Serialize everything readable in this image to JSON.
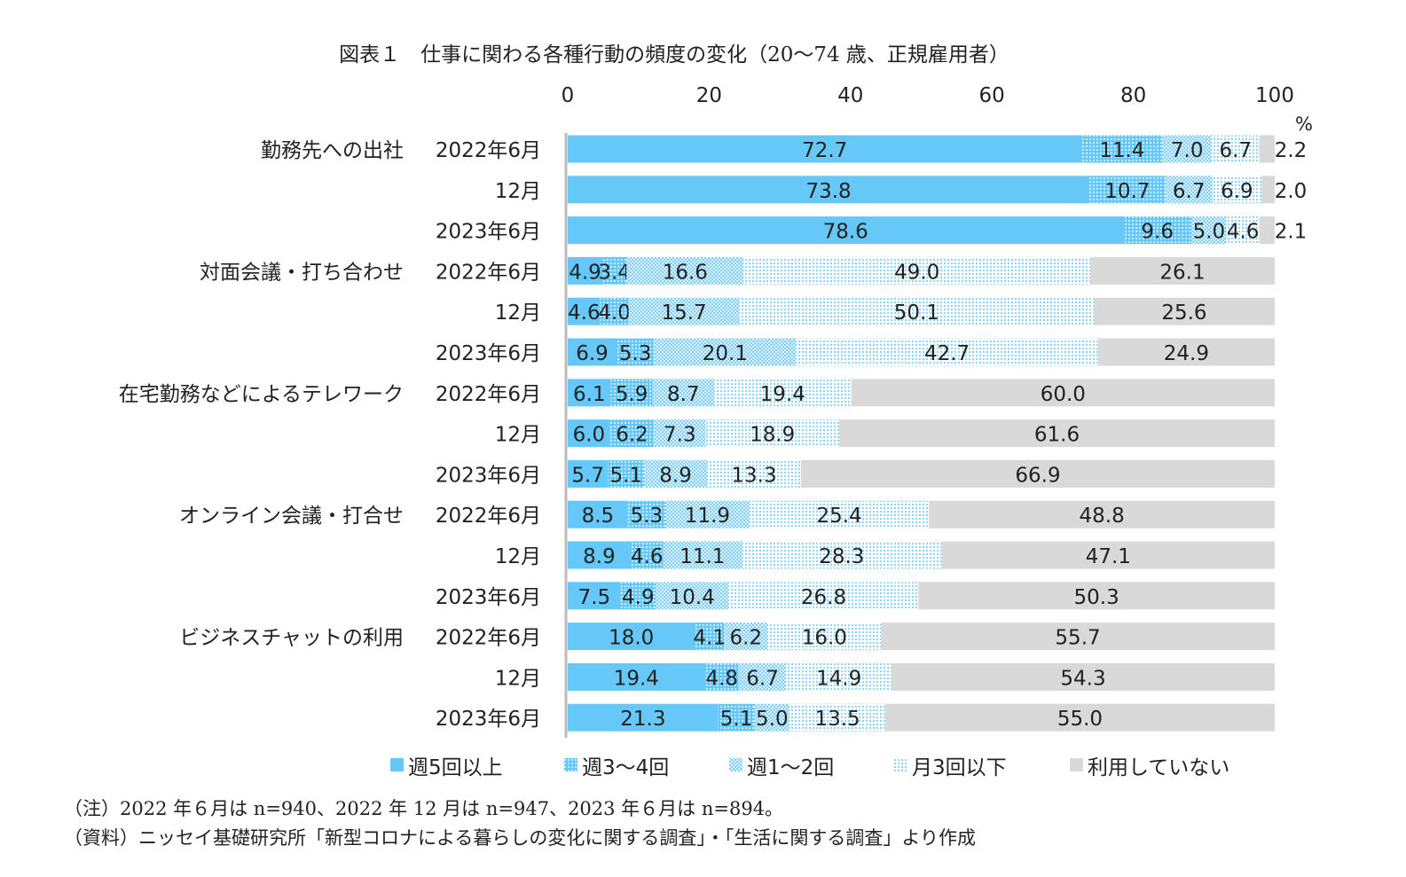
{
  "title": "図表１　仕事に関わる各種行動の頻度の変化（20～74 歳、正規雇用者）",
  "notes": [
    "（注）2022 年６月は n=940、2022 年 12 月は n=947、2023 年６月は n=894。",
    "（資料）ニッセイ基礎研究所「新型コロナによる暮らしの変化に関する調査」・「生活に関する調査」より作成"
  ],
  "chart_data": {
    "type": "bar",
    "orientation": "horizontal",
    "stacked": true,
    "title": "図表１　仕事に関わる各種行動の頻度の変化（20～74 歳、正規雇用者）",
    "xlim": [
      0,
      100
    ],
    "xticks": [
      "0",
      "20",
      "40",
      "60",
      "80",
      "100"
    ],
    "xunit": "%",
    "grid": false,
    "legend_position": "bottom",
    "series_names": [
      "週5回以上",
      "週3～4回",
      "週1～2回",
      "月3回以下",
      "利用していない"
    ],
    "colors": [
      "#66c8f8",
      "#8fd2f2",
      "#b3e0f5",
      "#d8effa",
      "#d9d9d9"
    ],
    "groups": [
      {
        "label": "勤務先への出社",
        "rows": [
          {
            "period": "2022年6月",
            "values": [
              72.7,
              11.4,
              7.0,
              6.7,
              2.2
            ]
          },
          {
            "period": "12月",
            "values": [
              73.8,
              10.7,
              6.7,
              6.9,
              2.0
            ]
          },
          {
            "period": "2023年6月",
            "values": [
              78.6,
              9.6,
              5.0,
              4.6,
              2.1
            ]
          }
        ]
      },
      {
        "label": "対面会議・打ち合わせ",
        "rows": [
          {
            "period": "2022年6月",
            "values": [
              4.9,
              3.4,
              16.6,
              49.0,
              26.1
            ]
          },
          {
            "period": "12月",
            "values": [
              4.6,
              4.0,
              15.7,
              50.1,
              25.6
            ]
          },
          {
            "period": "2023年6月",
            "values": [
              6.9,
              5.3,
              20.1,
              42.7,
              24.9
            ]
          }
        ]
      },
      {
        "label": "在宅勤務などによるテレワーク",
        "rows": [
          {
            "period": "2022年6月",
            "values": [
              6.1,
              5.9,
              8.7,
              19.4,
              60.0
            ]
          },
          {
            "period": "12月",
            "values": [
              6.0,
              6.2,
              7.3,
              18.9,
              61.6
            ]
          },
          {
            "period": "2023年6月",
            "values": [
              5.7,
              5.1,
              8.9,
              13.3,
              66.9
            ]
          }
        ]
      },
      {
        "label": "オンライン会議・打合せ",
        "rows": [
          {
            "period": "2022年6月",
            "values": [
              8.5,
              5.3,
              11.9,
              25.4,
              48.8
            ]
          },
          {
            "period": "12月",
            "values": [
              8.9,
              4.6,
              11.1,
              28.3,
              47.1
            ]
          },
          {
            "period": "2023年6月",
            "values": [
              7.5,
              4.9,
              10.4,
              26.8,
              50.3
            ]
          }
        ]
      },
      {
        "label": "ビジネスチャットの利用",
        "rows": [
          {
            "period": "2022年6月",
            "values": [
              18.0,
              4.1,
              6.2,
              16.0,
              55.7
            ]
          },
          {
            "period": "12月",
            "values": [
              19.4,
              4.8,
              6.7,
              14.9,
              54.3
            ]
          },
          {
            "period": "2023年6月",
            "values": [
              21.3,
              5.1,
              5.0,
              13.5,
              55.0
            ]
          }
        ]
      }
    ]
  }
}
